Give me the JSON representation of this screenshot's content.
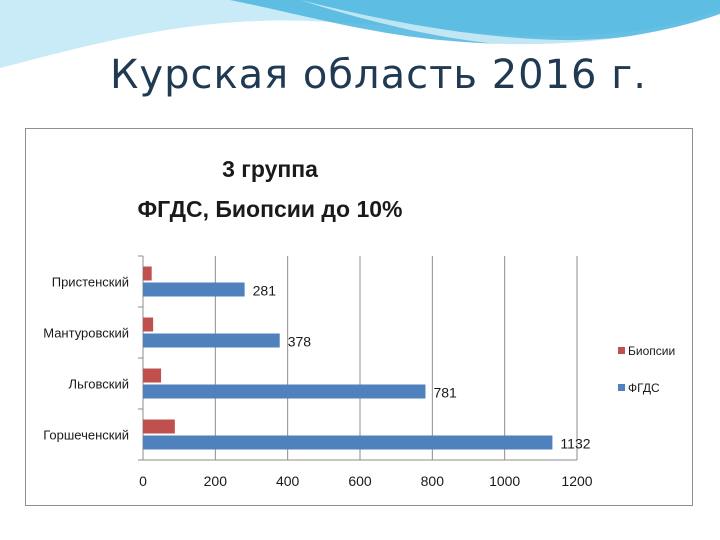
{
  "slide": {
    "title": "Курская область 2016 г."
  },
  "colors": {
    "banner_light": "#b9e3f3",
    "banner_dark": "#3aa8d8",
    "title_text": "#1f3a52",
    "series_fgds": "#4f81bd",
    "series_biopsy": "#c0504d",
    "gridline": "#8c8c8c"
  },
  "chart_data": {
    "type": "bar",
    "orientation": "horizontal",
    "title_lines": [
      "3 группа",
      "ФГДС, Биопсии до 10%"
    ],
    "categories": [
      "Пристенский",
      "Мантуровский",
      "Льговский",
      "Горшеченский"
    ],
    "series": [
      {
        "name": "Биопсии",
        "values": [
          24,
          28,
          50,
          88
        ]
      },
      {
        "name": "ФГДС",
        "values": [
          281,
          378,
          781,
          1132
        ],
        "data_labels": [
          "281",
          "378",
          "781",
          "1132"
        ]
      }
    ],
    "xlim": [
      0,
      1200
    ],
    "xticks": [
      "0",
      "200",
      "400",
      "600",
      "800",
      "1000",
      "1200"
    ],
    "grid": "vertical",
    "legend": {
      "placement": "right",
      "entries": [
        "Биопсии",
        "ФГДС"
      ]
    }
  }
}
